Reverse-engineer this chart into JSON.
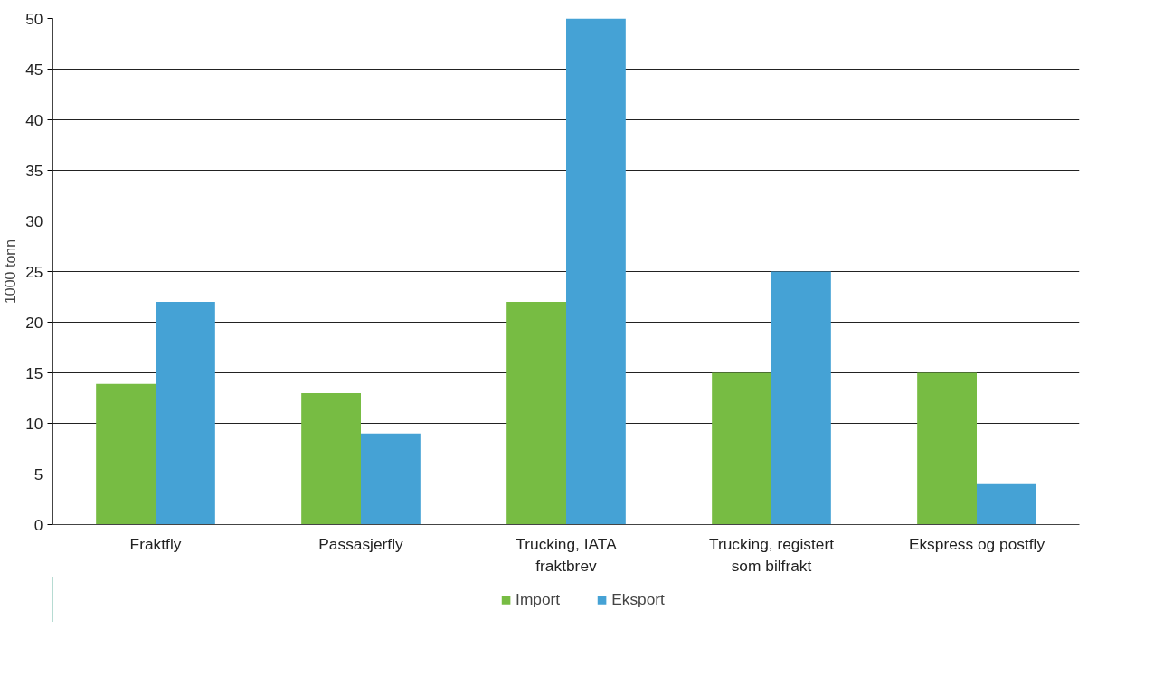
{
  "chart_data": {
    "type": "bar",
    "ylabel": "1000 tonn",
    "categories": [
      "Fraktfly",
      "Passasjerfly",
      "Trucking, IATA fraktbrev",
      "Trucking, registert som bilfrakt",
      "Ekspress og postfly"
    ],
    "series": [
      {
        "name": "Import",
        "color": "#77bc43",
        "values": [
          13.9,
          13,
          22,
          15,
          15
        ]
      },
      {
        "name": "Eksport",
        "color": "#45a2d5",
        "values": [
          22,
          9,
          50,
          25,
          4
        ]
      }
    ],
    "ylim": [
      0,
      50
    ],
    "yticks": [
      0,
      5,
      10,
      15,
      20,
      25,
      30,
      35,
      40,
      45,
      50
    ],
    "grid": "y",
    "legend": "bottom"
  }
}
